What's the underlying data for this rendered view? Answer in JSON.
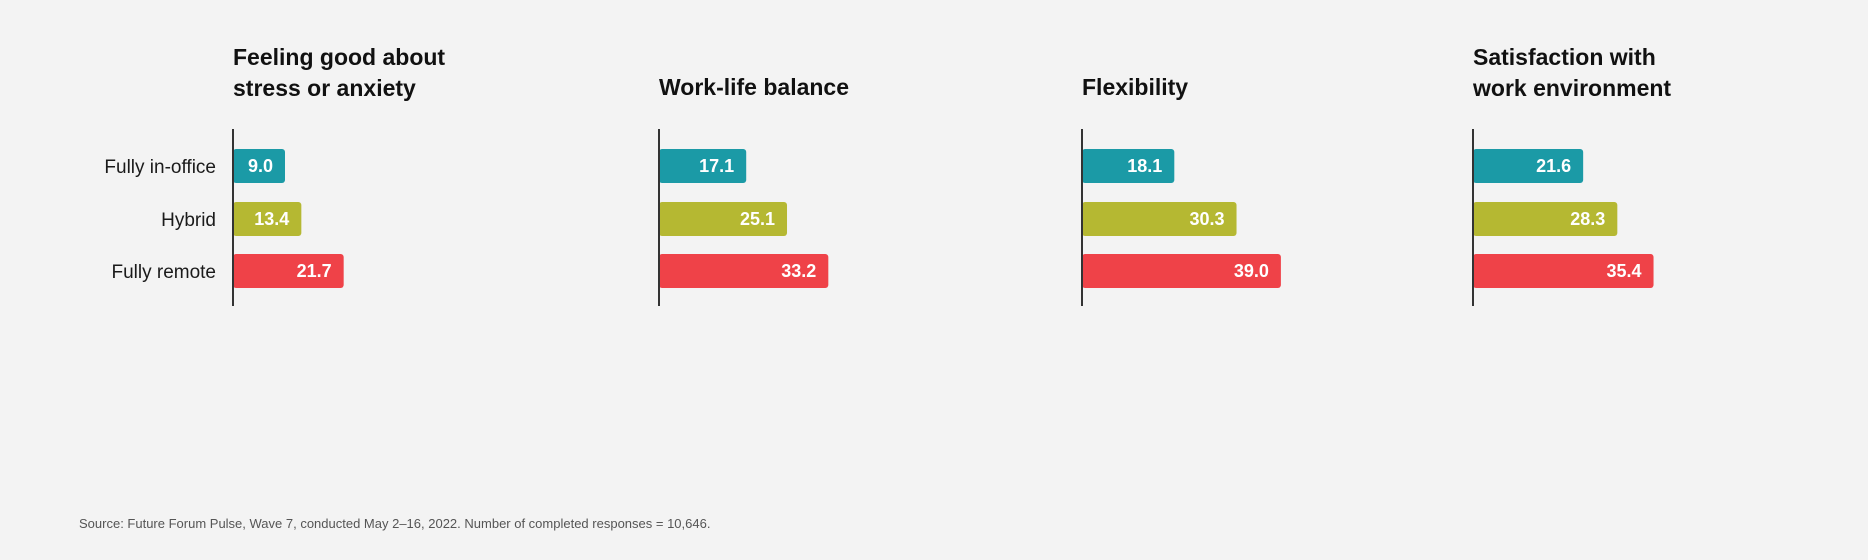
{
  "chart_data": {
    "type": "bar",
    "orientation": "horizontal",
    "categories": [
      "Fully in-office",
      "Hybrid",
      "Fully remote"
    ],
    "colors": [
      "#1b9aa6",
      "#b5b832",
      "#ef4248"
    ],
    "panels": [
      {
        "title_lines": [
          "Feeling good about",
          "stress or anxiety"
        ],
        "values": [
          9.0,
          13.4,
          21.7
        ]
      },
      {
        "title_lines": [
          "Work-life balance"
        ],
        "values": [
          17.1,
          25.1,
          33.2
        ]
      },
      {
        "title_lines": [
          "Flexibility"
        ],
        "values": [
          18.1,
          30.3,
          39.0
        ]
      },
      {
        "title_lines": [
          "Satisfaction with",
          "work environment"
        ],
        "values": [
          21.6,
          28.3,
          35.4
        ]
      }
    ],
    "value_labels_visible": true,
    "grid": false,
    "xlim": [
      0,
      39
    ]
  },
  "footer": {
    "source": "Source: Future Forum Pulse, Wave 7, conducted May 2–16, 2022. Number of completed responses = 10,646."
  }
}
